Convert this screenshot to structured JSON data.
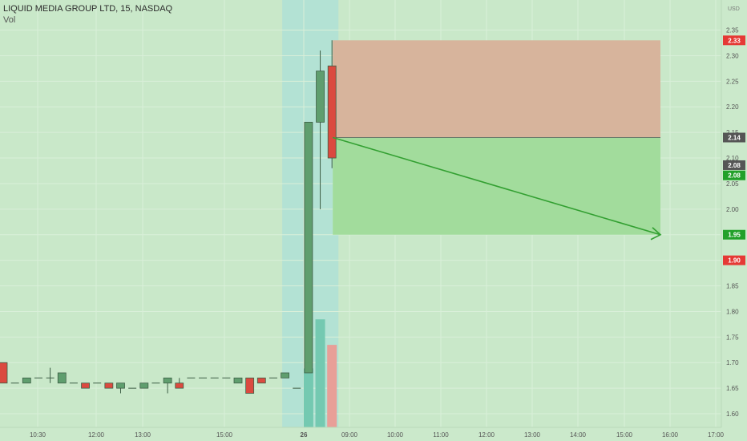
{
  "header": {
    "title": "LIQUID MEDIA GROUP LTD, 15, NASDAQ",
    "indicator": "Vol"
  },
  "chart_data": {
    "type": "candlestick",
    "y_unit": "USD",
    "ylim": [
      1.58,
      2.4
    ],
    "y_ticks": [
      "2.35",
      "2.30",
      "2.25",
      "2.20",
      "2.15",
      "2.10",
      "2.05",
      "2.00",
      "1.95",
      "1.90",
      "1.85",
      "1.80",
      "1.75",
      "1.70",
      "1.65",
      "1.60"
    ],
    "x_ticks": [
      "10:30",
      "12:00",
      "13:00",
      "15:00",
      "26",
      "09:00",
      "10:00",
      "11:00",
      "12:00",
      "13:00",
      "14:00",
      "15:00",
      "16:00",
      "17:00"
    ],
    "candles": [
      {
        "o": 1.7,
        "h": 1.7,
        "l": 1.66,
        "c": 1.66
      },
      {
        "o": 1.66,
        "h": 1.66,
        "l": 1.66,
        "c": 1.66
      },
      {
        "o": 1.66,
        "h": 1.67,
        "l": 1.66,
        "c": 1.67
      },
      {
        "o": 1.67,
        "h": 1.67,
        "l": 1.67,
        "c": 1.67
      },
      {
        "o": 1.67,
        "h": 1.69,
        "l": 1.66,
        "c": 1.67
      },
      {
        "o": 1.66,
        "h": 1.68,
        "l": 1.66,
        "c": 1.68
      },
      {
        "o": 1.66,
        "h": 1.66,
        "l": 1.66,
        "c": 1.66
      },
      {
        "o": 1.66,
        "h": 1.66,
        "l": 1.65,
        "c": 1.65
      },
      {
        "o": 1.66,
        "h": 1.66,
        "l": 1.66,
        "c": 1.66
      },
      {
        "o": 1.66,
        "h": 1.66,
        "l": 1.65,
        "c": 1.65
      },
      {
        "o": 1.65,
        "h": 1.66,
        "l": 1.64,
        "c": 1.66
      },
      {
        "o": 1.65,
        "h": 1.65,
        "l": 1.65,
        "c": 1.65
      },
      {
        "o": 1.65,
        "h": 1.66,
        "l": 1.65,
        "c": 1.66
      },
      {
        "o": 1.66,
        "h": 1.66,
        "l": 1.66,
        "c": 1.66
      },
      {
        "o": 1.66,
        "h": 1.67,
        "l": 1.64,
        "c": 1.67
      },
      {
        "o": 1.66,
        "h": 1.67,
        "l": 1.65,
        "c": 1.65
      },
      {
        "o": 1.67,
        "h": 1.67,
        "l": 1.67,
        "c": 1.67
      },
      {
        "o": 1.67,
        "h": 1.67,
        "l": 1.67,
        "c": 1.67
      },
      {
        "o": 1.67,
        "h": 1.67,
        "l": 1.67,
        "c": 1.67
      },
      {
        "o": 1.67,
        "h": 1.67,
        "l": 1.67,
        "c": 1.67
      },
      {
        "o": 1.66,
        "h": 1.67,
        "l": 1.66,
        "c": 1.67
      },
      {
        "o": 1.67,
        "h": 1.67,
        "l": 1.64,
        "c": 1.64
      },
      {
        "o": 1.67,
        "h": 1.67,
        "l": 1.66,
        "c": 1.66
      },
      {
        "o": 1.67,
        "h": 1.67,
        "l": 1.67,
        "c": 1.67
      },
      {
        "o": 1.67,
        "h": 1.68,
        "l": 1.67,
        "c": 1.68
      },
      {
        "o": 1.65,
        "h": 1.65,
        "l": 1.65,
        "c": 1.65
      },
      {
        "o": 1.68,
        "h": 2.17,
        "l": 1.68,
        "c": 2.17
      },
      {
        "o": 2.17,
        "h": 2.31,
        "l": 2.0,
        "c": 2.27
      },
      {
        "o": 2.28,
        "h": 2.33,
        "l": 2.08,
        "c": 2.1
      }
    ],
    "volume_bars": [
      {
        "bar": 26,
        "rel": 0.3,
        "dir": "up"
      },
      {
        "bar": 27,
        "rel": 0.55,
        "dir": "up"
      },
      {
        "bar": 28,
        "rel": 0.42,
        "dir": "down"
      }
    ],
    "session_highlight": {
      "from_bar": 24,
      "to_bar": 28
    },
    "short_position": {
      "entry": 2.14,
      "stop": 2.33,
      "target": 1.95,
      "start_bar": 28,
      "end_time_bar": 57
    },
    "price_tags": [
      {
        "value": 2.33,
        "label": "2.33",
        "color": "#e53935"
      },
      {
        "value": 2.14,
        "label": "2.14",
        "color": "#555555"
      },
      {
        "value": 2.086,
        "label": "2.08",
        "color": "#555555"
      },
      {
        "value": 2.066,
        "label": "2.08",
        "color": "#22a02a"
      },
      {
        "value": 1.95,
        "label": "1.95",
        "color": "#22a02a"
      },
      {
        "value": 1.9,
        "label": "1.90",
        "color": "#e53935"
      }
    ]
  },
  "colors": {
    "background": "#c9e8c9",
    "session": "#b3e2d4",
    "up_candle": "#5f9e6e",
    "down_candle": "#db4a3f",
    "risk_zone": "#d7b49c",
    "reward_zone": "#a2dc9c",
    "target_line": "#33a032",
    "volume_up": "#74c9b1",
    "volume_down": "#e89f98"
  }
}
